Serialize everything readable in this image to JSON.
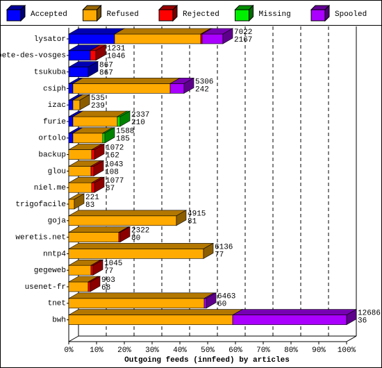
{
  "chart_data": {
    "type": "bar",
    "orientation": "horizontal",
    "stacked": true,
    "xlabel": "Outgoing feeds (innfeed) by articles",
    "categories": [
      "lysator",
      "bete-des-vosges",
      "tsukuba",
      "csiph",
      "izac",
      "furie",
      "ortolo",
      "backup",
      "glou",
      "niel.me",
      "trigofacile",
      "goja",
      "weretis.net",
      "nntp4",
      "gegeweb",
      "usenet-fr",
      "tnet",
      "bwh"
    ],
    "series": [
      {
        "name": "Accepted",
        "color": "#0000ff",
        "values": [
          16.5,
          7.75,
          7,
          1.5,
          1.5,
          1.5,
          1.5,
          0,
          0,
          0,
          0,
          0,
          0,
          0,
          0,
          0,
          0,
          0
        ]
      },
      {
        "name": "Refused",
        "color": "#ffaa00",
        "values": [
          31,
          0,
          0,
          35,
          2.5,
          16,
          10.75,
          8.25,
          8,
          8.25,
          2,
          38.75,
          18,
          48.5,
          8,
          7,
          48.75,
          59
        ]
      },
      {
        "name": "Rejected",
        "color": "#ff0000",
        "values": [
          0.5,
          2,
          0,
          0,
          0,
          0,
          0,
          1,
          1,
          1,
          0,
          0,
          0.5,
          0,
          0.75,
          0.75,
          0,
          0
        ]
      },
      {
        "name": "Missing",
        "color": "#00ee00",
        "values": [
          0,
          0,
          0,
          0,
          0,
          1,
          0.75,
          0,
          0,
          0,
          0,
          0,
          0,
          0,
          0,
          0,
          0,
          0
        ]
      },
      {
        "name": "Spooled",
        "color": "#aa00ff",
        "values": [
          7.5,
          0,
          0,
          5,
          0,
          0,
          0,
          0,
          0,
          0,
          0,
          0,
          0,
          0,
          0,
          0,
          0.75,
          41
        ]
      }
    ],
    "upper_numbers": [
      7022,
      1231,
      867,
      5306,
      535,
      2337,
      1588,
      1072,
      1043,
      1077,
      221,
      4915,
      2322,
      6136,
      1045,
      903,
      6463,
      12686
    ],
    "lower_numbers": [
      2167,
      1046,
      867,
      242,
      239,
      210,
      185,
      162,
      108,
      87,
      83,
      81,
      80,
      77,
      77,
      68,
      60,
      36
    ],
    "xlim": [
      0,
      100
    ],
    "xticks": [
      {
        "value": 0,
        "label": "0%"
      },
      {
        "value": 10,
        "label": "10%"
      },
      {
        "value": 20,
        "label": "20%"
      },
      {
        "value": 30,
        "label": "30%"
      },
      {
        "value": 40,
        "label": "40%"
      },
      {
        "value": 50,
        "label": "50%"
      },
      {
        "value": 60,
        "label": "60%"
      },
      {
        "value": 70,
        "label": "70%"
      },
      {
        "value": 80,
        "label": "80%"
      },
      {
        "value": 90,
        "label": "90%"
      },
      {
        "value": 100,
        "label": "100%"
      }
    ],
    "grid": true
  }
}
